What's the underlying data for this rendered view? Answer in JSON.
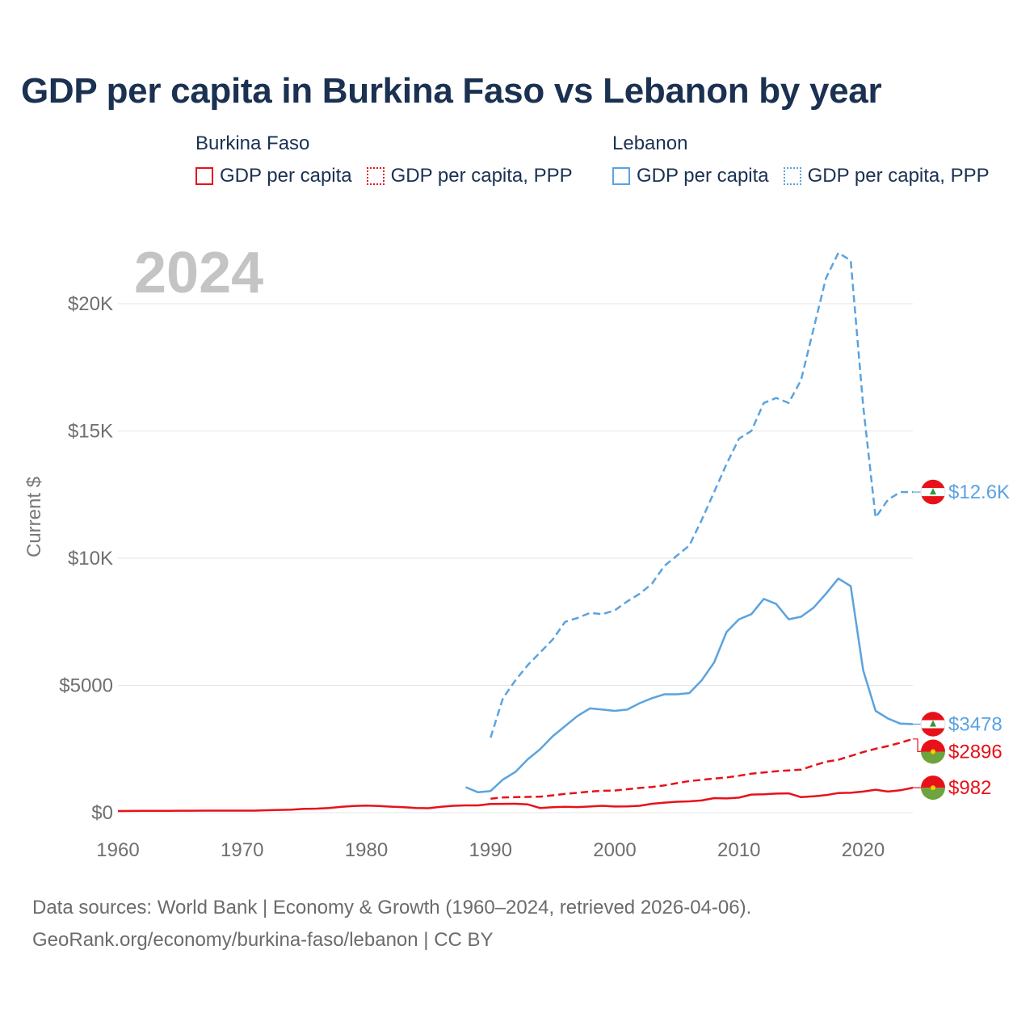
{
  "title": "GDP per capita in Burkina Faso vs Lebanon by year",
  "legend": {
    "groups": [
      {
        "name": "Burkina Faso",
        "color": "#e8111a",
        "items": [
          {
            "label": "GDP per capita",
            "style": "solid"
          },
          {
            "label": "GDP per capita, PPP",
            "style": "dotted"
          }
        ]
      },
      {
        "name": "Lebanon",
        "color": "#5aa3e0",
        "items": [
          {
            "label": "GDP per capita",
            "style": "solid"
          },
          {
            "label": "GDP per capita, PPP",
            "style": "dotted"
          }
        ]
      }
    ]
  },
  "year_label": "2024",
  "footer": {
    "line1": "Data sources: World Bank | Economy & Growth (1960–2024, retrieved 2026-04-06).",
    "line2": "GeoRank.org/economy/burkina-faso/lebanon | CC BY"
  },
  "chart_data": {
    "type": "line",
    "title": "GDP per capita in Burkina Faso vs Lebanon by year",
    "xlabel": "",
    "ylabel": "Current $",
    "xlim": [
      1960,
      2024
    ],
    "ylim": [
      0,
      22000
    ],
    "xticks": [
      1960,
      1970,
      1980,
      1990,
      2000,
      2010,
      2020
    ],
    "xtick_labels": [
      "1960",
      "1970",
      "1980",
      "1990",
      "2000",
      "2010",
      "2020"
    ],
    "yticks": [
      0,
      5000,
      10000,
      15000,
      20000
    ],
    "ytick_labels": [
      "$0",
      "$5000",
      "$10K",
      "$15K",
      "$20K"
    ],
    "grid": true,
    "series": [
      {
        "name": "Burkina Faso GDP per capita",
        "country": "Burkina Faso",
        "color": "#e8111a",
        "dash": "solid",
        "end_label": "$982",
        "x": [
          1960,
          1961,
          1962,
          1963,
          1964,
          1965,
          1966,
          1967,
          1968,
          1969,
          1970,
          1971,
          1972,
          1973,
          1974,
          1975,
          1976,
          1977,
          1978,
          1979,
          1980,
          1981,
          1982,
          1983,
          1984,
          1985,
          1986,
          1987,
          1988,
          1989,
          1990,
          1991,
          1992,
          1993,
          1994,
          1995,
          1996,
          1997,
          1998,
          1999,
          2000,
          2001,
          2002,
          2003,
          2004,
          2005,
          2006,
          2007,
          2008,
          2009,
          2010,
          2011,
          2012,
          2013,
          2014,
          2015,
          2016,
          2017,
          2018,
          2019,
          2020,
          2021,
          2022,
          2023,
          2024
        ],
        "values": [
          65,
          68,
          70,
          72,
          73,
          75,
          76,
          78,
          80,
          80,
          80,
          80,
          95,
          108,
          120,
          150,
          160,
          185,
          230,
          265,
          280,
          260,
          235,
          215,
          185,
          175,
          230,
          270,
          285,
          285,
          340,
          345,
          350,
          325,
          180,
          215,
          230,
          220,
          240,
          270,
          240,
          245,
          270,
          350,
          395,
          430,
          445,
          480,
          570,
          560,
          590,
          710,
          720,
          750,
          760,
          610,
          640,
          690,
          770,
          780,
          830,
          900,
          830,
          880,
          982
        ]
      },
      {
        "name": "Burkina Faso GDP per capita, PPP",
        "country": "Burkina Faso",
        "color": "#e8111a",
        "dash": "dashed",
        "end_label": "$2896",
        "x": [
          1990,
          1991,
          1992,
          1993,
          1994,
          1995,
          1996,
          1997,
          1998,
          1999,
          2000,
          2001,
          2002,
          2003,
          2004,
          2005,
          2006,
          2007,
          2008,
          2009,
          2010,
          2011,
          2012,
          2013,
          2014,
          2015,
          2016,
          2017,
          2018,
          2019,
          2020,
          2021,
          2022,
          2023,
          2024
        ],
        "values": [
          550,
          600,
          610,
          620,
          630,
          680,
          740,
          780,
          830,
          860,
          870,
          920,
          970,
          1010,
          1070,
          1160,
          1240,
          1290,
          1340,
          1380,
          1450,
          1530,
          1580,
          1630,
          1660,
          1690,
          1850,
          2000,
          2080,
          2230,
          2380,
          2510,
          2620,
          2750,
          2896
        ]
      },
      {
        "name": "Lebanon GDP per capita",
        "country": "Lebanon",
        "color": "#5aa3e0",
        "dash": "solid",
        "end_label": "$3478",
        "x": [
          1988,
          1989,
          1990,
          1991,
          1992,
          1993,
          1994,
          1995,
          1996,
          1997,
          1998,
          1999,
          2000,
          2001,
          2002,
          2003,
          2004,
          2005,
          2006,
          2007,
          2008,
          2009,
          2010,
          2011,
          2012,
          2013,
          2014,
          2015,
          2016,
          2017,
          2018,
          2019,
          2020,
          2021,
          2022,
          2023,
          2024
        ],
        "values": [
          1000,
          800,
          850,
          1300,
          1600,
          2100,
          2500,
          3000,
          3400,
          3800,
          4100,
          4050,
          4000,
          4050,
          4300,
          4500,
          4650,
          4650,
          4700,
          5200,
          5900,
          7100,
          7600,
          7800,
          8400,
          8200,
          7600,
          7700,
          8050,
          8600,
          9200,
          8900,
          5600,
          4000,
          3700,
          3500,
          3478
        ]
      },
      {
        "name": "Lebanon GDP per capita, PPP",
        "country": "Lebanon",
        "color": "#5aa3e0",
        "dash": "dashed",
        "end_label": "$12.6K",
        "x": [
          1990,
          1991,
          1992,
          1993,
          1994,
          1995,
          1996,
          1997,
          1998,
          1999,
          2000,
          2001,
          2002,
          2003,
          2004,
          2005,
          2006,
          2007,
          2008,
          2009,
          2010,
          2011,
          2012,
          2013,
          2014,
          2015,
          2016,
          2017,
          2018,
          2019,
          2020,
          2021,
          2022,
          2023,
          2024
        ],
        "values": [
          2950,
          4500,
          5200,
          5800,
          6300,
          6800,
          7500,
          7650,
          7850,
          7800,
          7950,
          8300,
          8600,
          9000,
          9700,
          10100,
          10500,
          11500,
          12600,
          13700,
          14700,
          15000,
          16100,
          16300,
          16100,
          17000,
          19000,
          21000,
          22000,
          21700,
          16000,
          11600,
          12300,
          12600,
          12600
        ]
      }
    ]
  }
}
